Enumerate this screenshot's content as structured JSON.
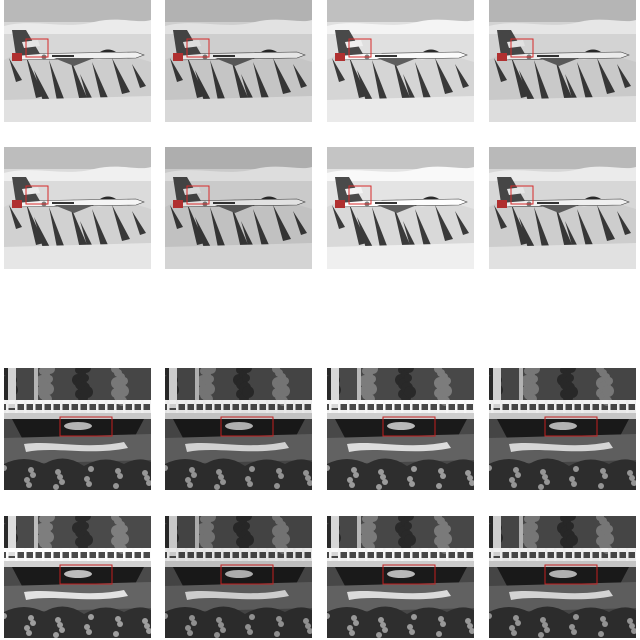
{
  "figure": {
    "groups": [
      {
        "name": "jet",
        "highlight_color": "#d62a2a",
        "tiles": [
          {
            "tone": 1.0
          },
          {
            "tone": 0.96
          },
          {
            "tone": 1.04
          },
          {
            "tone": 0.98
          },
          {
            "tone": 1.02
          },
          {
            "tone": 0.94
          },
          {
            "tone": 1.06
          },
          {
            "tone": 1.0
          }
        ]
      },
      {
        "name": "bridge",
        "highlight_color": "#c21f1f",
        "tiles": [
          {
            "tone": 1.0
          },
          {
            "tone": 0.97
          },
          {
            "tone": 1.03
          },
          {
            "tone": 0.99
          },
          {
            "tone": 1.05
          },
          {
            "tone": 0.95
          },
          {
            "tone": 1.02
          },
          {
            "tone": 0.98
          }
        ]
      }
    ]
  }
}
